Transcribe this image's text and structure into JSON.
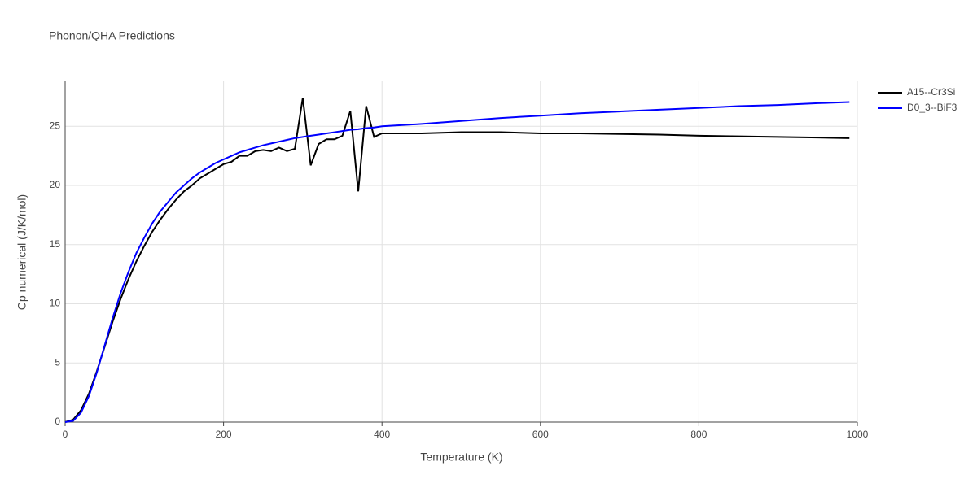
{
  "chart_data": {
    "type": "line",
    "title": "Phonon/QHA Predictions",
    "x_label": "Temperature (K)",
    "y_label": "Cp numerical (J/K/mol)",
    "x": [
      0,
      10,
      20,
      30,
      40,
      50,
      60,
      70,
      80,
      90,
      100,
      110,
      120,
      130,
      140,
      150,
      160,
      170,
      180,
      190,
      200,
      210,
      220,
      230,
      240,
      250,
      260,
      270,
      280,
      290,
      300,
      310,
      320,
      330,
      340,
      350,
      360,
      370,
      380,
      390,
      400,
      450,
      500,
      550,
      600,
      650,
      700,
      750,
      800,
      850,
      900,
      950,
      990
    ],
    "series": [
      {
        "name": "A15--Cr3Si",
        "color": "#000000",
        "values": [
          0,
          0.2,
          1.0,
          2.4,
          4.3,
          6.4,
          8.5,
          10.4,
          12.1,
          13.6,
          14.9,
          16.1,
          17.1,
          18.0,
          18.8,
          19.5,
          20.0,
          20.6,
          21.0,
          21.4,
          21.8,
          22.0,
          22.5,
          22.5,
          22.9,
          23.0,
          22.9,
          23.2,
          22.9,
          23.1,
          27.4,
          21.7,
          23.5,
          23.9,
          23.9,
          24.2,
          26.3,
          19.5,
          26.7,
          24.1,
          24.4,
          24.4,
          24.5,
          24.5,
          24.4,
          24.4,
          24.35,
          24.3,
          24.2,
          24.15,
          24.1,
          24.05,
          24.0
        ]
      },
      {
        "name": "D0_3--BiF3",
        "color": "#0000ff",
        "values": [
          0,
          0.1,
          0.8,
          2.2,
          4.2,
          6.5,
          8.8,
          10.9,
          12.7,
          14.3,
          15.6,
          16.8,
          17.8,
          18.6,
          19.4,
          20.0,
          20.6,
          21.1,
          21.5,
          21.9,
          22.2,
          22.5,
          22.8,
          23.0,
          23.2,
          23.4,
          23.55,
          23.7,
          23.85,
          24.0,
          24.1,
          24.2,
          24.3,
          24.4,
          24.5,
          24.6,
          24.7,
          24.75,
          24.85,
          24.9,
          25.0,
          25.2,
          25.45,
          25.7,
          25.9,
          26.1,
          26.25,
          26.4,
          26.55,
          26.7,
          26.8,
          26.95,
          27.05
        ]
      }
    ],
    "xlim": [
      0,
      1000
    ],
    "ylim": [
      0,
      28.8
    ],
    "xticks": [
      0,
      200,
      400,
      600,
      800,
      1000
    ],
    "yticks": [
      0,
      5,
      10,
      15,
      20,
      25
    ],
    "grid": true,
    "legend": "top-right"
  }
}
